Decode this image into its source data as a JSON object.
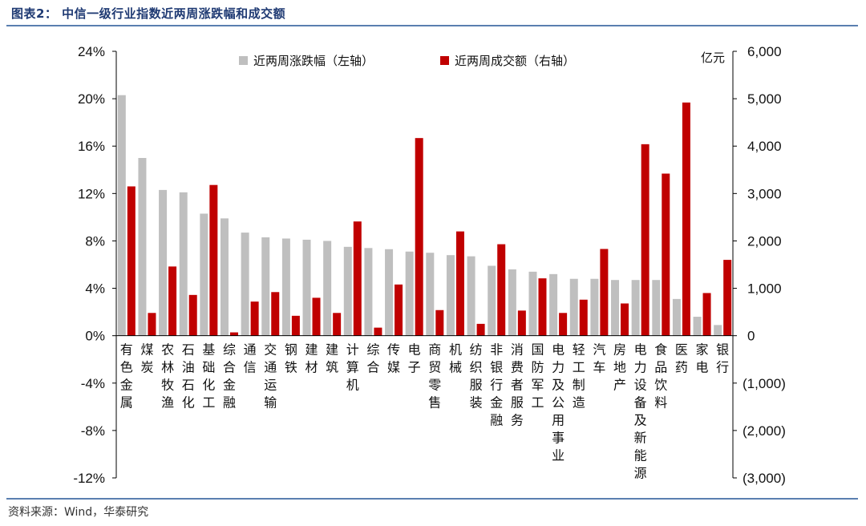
{
  "header": {
    "title": "图表2：  中信一级行业指数近两周涨跌幅和成交额"
  },
  "source": "资料来源：Wind，华泰研究",
  "chart_data": {
    "type": "bar",
    "title": "中信一级行业指数近两周涨跌幅和成交额",
    "unit_right": "亿元",
    "categories": [
      "有色金属",
      "煤炭",
      "农林牧渔",
      "石油石化",
      "基础化工",
      "综合金融",
      "通信",
      "交通运输",
      "钢铁",
      "建材",
      "建筑",
      "计算机",
      "综合",
      "传媒",
      "电子",
      "商贸零售",
      "机械",
      "纺织服装",
      "非银行金融",
      "消费者服务",
      "国防军工",
      "电力及公用事业",
      "轻工制造",
      "汽车",
      "房地产",
      "电力设备及新能源",
      "食品饮料",
      "医药",
      "家电",
      "银行"
    ],
    "series": [
      {
        "name": "近两周涨跌幅（左轴）",
        "axis": "left",
        "color": "#bfbfbf",
        "values": [
          20.3,
          15.0,
          12.3,
          12.1,
          10.3,
          9.9,
          8.7,
          8.3,
          8.2,
          8.1,
          8.0,
          7.5,
          7.4,
          7.3,
          7.1,
          7.0,
          6.8,
          6.7,
          5.9,
          5.6,
          5.4,
          5.2,
          4.8,
          4.8,
          4.7,
          4.7,
          4.7,
          3.1,
          1.6,
          0.9
        ]
      },
      {
        "name": "近两周成交额（右轴）",
        "axis": "right",
        "color": "#c00000",
        "values": [
          3150,
          480,
          1460,
          860,
          3180,
          70,
          720,
          920,
          420,
          800,
          480,
          2410,
          170,
          1080,
          4170,
          540,
          2200,
          250,
          1930,
          530,
          1210,
          480,
          760,
          1830,
          680,
          4040,
          3420,
          4920,
          900,
          1600
        ]
      }
    ],
    "left_axis": {
      "ylim": [
        -12,
        24
      ],
      "ticks": [
        "24%",
        "20%",
        "16%",
        "12%",
        "8%",
        "4%",
        "0%",
        "-4%",
        "-8%",
        "-12%"
      ]
    },
    "right_axis": {
      "ylim": [
        -3000,
        6000
      ],
      "ticks": [
        "6,000",
        "5,000",
        "4,000",
        "3,000",
        "2,000",
        "1,000",
        "0",
        "(1,000)",
        "(2,000)",
        "(3,000)"
      ]
    },
    "legend_position": "top-center"
  }
}
